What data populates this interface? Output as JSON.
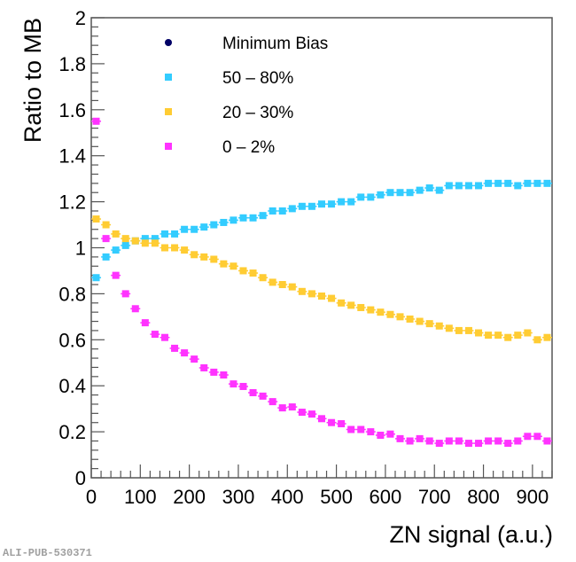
{
  "chart_data": {
    "type": "scatter",
    "title": "",
    "xlabel": "ZN signal (a.u.)",
    "ylabel": "Ratio to MB",
    "xlim": [
      0,
      940
    ],
    "ylim": [
      0,
      2
    ],
    "x_ticks": [
      0,
      100,
      200,
      300,
      400,
      500,
      600,
      700,
      800,
      900
    ],
    "y_ticks": [
      0,
      0.2,
      0.4,
      0.6,
      0.8,
      1,
      1.2,
      1.4,
      1.6,
      1.8,
      2
    ],
    "y_tick_labels": [
      "0",
      "0.2",
      "0.4",
      "0.6",
      "0.8",
      "1",
      "1.2",
      "1.4",
      "1.6",
      "1.8",
      "2"
    ],
    "x_tick_labels": [
      "0",
      "100",
      "200",
      "300",
      "400",
      "500",
      "600",
      "700",
      "800",
      "900"
    ],
    "grid": false,
    "legend_position": "top-left",
    "x": [
      10,
      30,
      50,
      70,
      90,
      110,
      130,
      150,
      170,
      190,
      210,
      230,
      250,
      270,
      290,
      310,
      330,
      350,
      370,
      390,
      410,
      430,
      450,
      470,
      490,
      510,
      530,
      550,
      570,
      590,
      610,
      630,
      650,
      670,
      690,
      710,
      730,
      750,
      770,
      790,
      810,
      830,
      850,
      870,
      890,
      910,
      930
    ],
    "series": [
      {
        "name": "Minimum Bias",
        "marker": "circle",
        "color": "#000066",
        "values": []
      },
      {
        "name": "50 – 80%",
        "marker": "square",
        "color": "#33ccff",
        "values": [
          0.87,
          0.96,
          0.99,
          1.01,
          1.03,
          1.04,
          1.04,
          1.06,
          1.06,
          1.08,
          1.08,
          1.09,
          1.1,
          1.11,
          1.12,
          1.13,
          1.13,
          1.14,
          1.16,
          1.16,
          1.17,
          1.18,
          1.18,
          1.19,
          1.19,
          1.2,
          1.2,
          1.22,
          1.22,
          1.23,
          1.24,
          1.24,
          1.24,
          1.25,
          1.26,
          1.25,
          1.27,
          1.27,
          1.27,
          1.27,
          1.28,
          1.28,
          1.28,
          1.27,
          1.28,
          1.28,
          1.28
        ]
      },
      {
        "name": "20 – 30%",
        "marker": "square",
        "color": "#ffcc33",
        "values": [
          1.125,
          1.1,
          1.06,
          1.04,
          1.03,
          1.02,
          1.02,
          1.0,
          1.0,
          0.99,
          0.97,
          0.96,
          0.95,
          0.93,
          0.92,
          0.9,
          0.89,
          0.87,
          0.85,
          0.84,
          0.83,
          0.81,
          0.8,
          0.79,
          0.78,
          0.76,
          0.75,
          0.74,
          0.73,
          0.72,
          0.71,
          0.7,
          0.69,
          0.68,
          0.67,
          0.66,
          0.65,
          0.64,
          0.64,
          0.63,
          0.62,
          0.62,
          0.61,
          0.62,
          0.63,
          0.6,
          0.61
        ]
      },
      {
        "name": "0 – 2%",
        "marker": "square",
        "color": "#ff33ff",
        "values": [
          1.55,
          1.04,
          0.88,
          0.8,
          0.735,
          0.674,
          0.624,
          0.61,
          0.563,
          0.543,
          0.516,
          0.478,
          0.459,
          0.447,
          0.408,
          0.397,
          0.37,
          0.355,
          0.331,
          0.304,
          0.308,
          0.285,
          0.277,
          0.257,
          0.24,
          0.235,
          0.21,
          0.21,
          0.2,
          0.185,
          0.19,
          0.17,
          0.16,
          0.17,
          0.16,
          0.15,
          0.16,
          0.16,
          0.15,
          0.15,
          0.16,
          0.16,
          0.15,
          0.16,
          0.18,
          0.18,
          0.16
        ]
      }
    ]
  },
  "watermark": "ALI-PUB-530371"
}
